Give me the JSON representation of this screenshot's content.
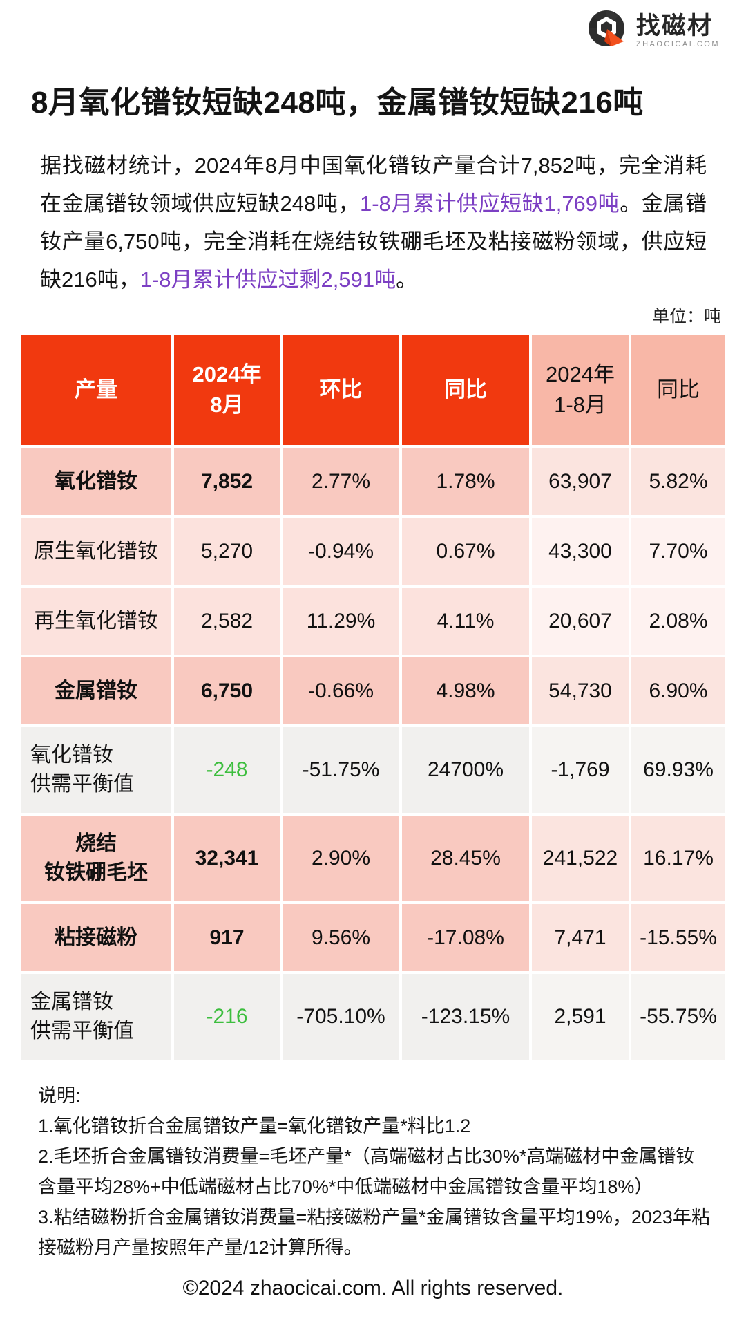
{
  "logo": {
    "name": "找磁材",
    "domain": "ZHAOCICAI.COM"
  },
  "title": "8月氧化镨钕短缺248吨，金属镨钕短缺216吨",
  "intro": {
    "segments": [
      {
        "text": "据找磁材统计，2024年8月中国氧化镨钕产量合计7,852吨，完全消耗在金属镨钕领域供应短缺248吨，",
        "highlight": false
      },
      {
        "text": "1-8月累计供应短缺1,769吨",
        "highlight": true
      },
      {
        "text": "。金属镨钕产量6,750吨，完全消耗在烧结钕铁硼毛坯及粘接磁粉领域，供应短缺216吨，",
        "highlight": false
      },
      {
        "text": "1-8月累计供应过剩2,591吨",
        "highlight": true
      },
      {
        "text": "。",
        "highlight": false
      }
    ]
  },
  "unit_label": "单位：吨",
  "table": {
    "header": [
      {
        "lines": [
          "产量"
        ],
        "theme": "red"
      },
      {
        "lines": [
          "2024年",
          "8月"
        ],
        "theme": "red"
      },
      {
        "lines": [
          "环比"
        ],
        "theme": "red"
      },
      {
        "lines": [
          "同比"
        ],
        "theme": "red"
      },
      {
        "lines": [
          "2024年",
          "1-8月"
        ],
        "theme": "pink"
      },
      {
        "lines": [
          "同比"
        ],
        "theme": "pink"
      }
    ],
    "rows": [
      {
        "label": [
          "氧化镨钕"
        ],
        "tone": "dark",
        "bold": true,
        "align": "center",
        "values": [
          {
            "t": "7,852",
            "s": "bold"
          },
          {
            "t": "2.77%"
          },
          {
            "t": "1.78%"
          },
          {
            "t": "63,907"
          },
          {
            "t": "5.82%"
          }
        ]
      },
      {
        "label": [
          "原生氧化镨钕"
        ],
        "tone": "light",
        "bold": false,
        "align": "center",
        "values": [
          {
            "t": "5,270"
          },
          {
            "t": "-0.94%"
          },
          {
            "t": "0.67%"
          },
          {
            "t": "43,300"
          },
          {
            "t": "7.70%"
          }
        ]
      },
      {
        "label": [
          "再生氧化镨钕"
        ],
        "tone": "light",
        "bold": false,
        "align": "center",
        "values": [
          {
            "t": "2,582"
          },
          {
            "t": "11.29%"
          },
          {
            "t": "4.11%"
          },
          {
            "t": "20,607"
          },
          {
            "t": "2.08%"
          }
        ]
      },
      {
        "label": [
          "金属镨钕"
        ],
        "tone": "dark",
        "bold": true,
        "align": "center",
        "values": [
          {
            "t": "6,750",
            "s": "bold"
          },
          {
            "t": "-0.66%"
          },
          {
            "t": "4.98%"
          },
          {
            "t": "54,730"
          },
          {
            "t": "6.90%"
          }
        ]
      },
      {
        "label": [
          "氧化镨钕",
          "供需平衡值"
        ],
        "tone": "gray",
        "bold": false,
        "align": "left",
        "values": [
          {
            "t": "-248",
            "s": "green"
          },
          {
            "t": "-51.75%"
          },
          {
            "t": "24700%"
          },
          {
            "t": "-1,769"
          },
          {
            "t": "69.93%"
          }
        ]
      },
      {
        "label": [
          "烧结",
          "钕铁硼毛坯"
        ],
        "tone": "dark",
        "bold": true,
        "align": "center",
        "values": [
          {
            "t": "32,341",
            "s": "bold"
          },
          {
            "t": "2.90%"
          },
          {
            "t": "28.45%"
          },
          {
            "t": "241,522"
          },
          {
            "t": "16.17%"
          }
        ]
      },
      {
        "label": [
          "粘接磁粉"
        ],
        "tone": "dark",
        "bold": true,
        "align": "center",
        "values": [
          {
            "t": "917",
            "s": "bold"
          },
          {
            "t": "9.56%"
          },
          {
            "t": "-17.08%"
          },
          {
            "t": "7,471"
          },
          {
            "t": "-15.55%"
          }
        ]
      },
      {
        "label": [
          "金属镨钕",
          "供需平衡值"
        ],
        "tone": "gray",
        "bold": false,
        "align": "left",
        "values": [
          {
            "t": "-216",
            "s": "green"
          },
          {
            "t": "-705.10%"
          },
          {
            "t": "-123.15%"
          },
          {
            "t": "2,591"
          },
          {
            "t": "-55.75%"
          }
        ]
      }
    ]
  },
  "notes": {
    "heading": "说明:",
    "items": [
      "1.氧化镨钕折合金属镨钕产量=氧化镨钕产量*料比1.2",
      "2.毛坯折合金属镨钕消费量=毛坯产量*（高端磁材占比30%*高端磁材中金属镨钕含量平均28%+中低端磁材占比70%*中低端磁材中金属镨钕含量平均18%）",
      "3.粘结磁粉折合金属镨钕消费量=粘接磁粉产量*金属镨钕含量平均19%，2023年粘接磁粉月产量按照年产量/12计算所得。"
    ]
  },
  "footer": {
    "copyright": "©2024 zhaocicai.com. All rights reserved."
  },
  "colors": {
    "accent_red": "#F1390F",
    "header_salmon": "#F8B7A7",
    "row_pink_dark": "#F9C9C0",
    "row_pink_dark_right": "#FBE4DF",
    "row_pink_light": "#FCE2DD",
    "row_pink_light_right": "#FEF2F0",
    "row_gray": "#F1F0EE",
    "row_gray_right": "#F6F4F2",
    "highlight_purple": "#7C3FC3",
    "balance_green": "#3DBE3E"
  }
}
